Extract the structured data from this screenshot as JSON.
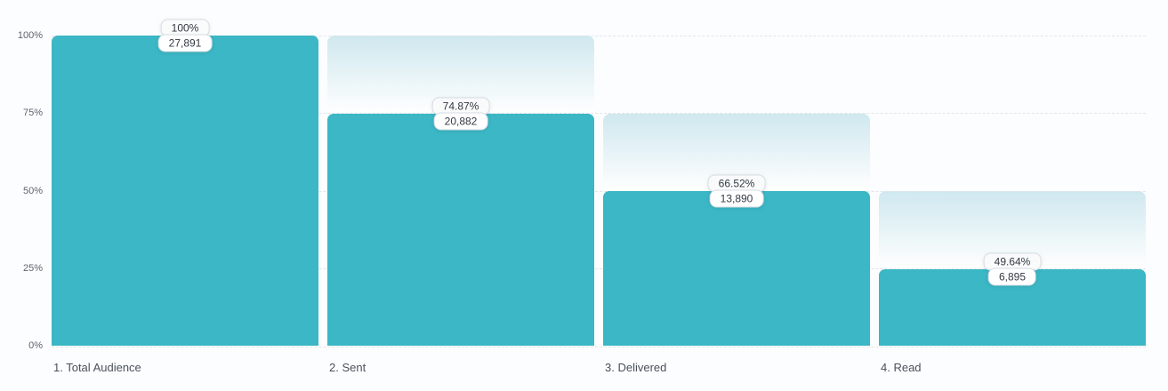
{
  "chart_data": {
    "type": "bar",
    "subtype": "funnel",
    "title": "",
    "xlabel": "",
    "ylabel": "",
    "ylim": [
      0,
      100
    ],
    "grid": "horizontal-dashed",
    "yticks": [
      "100%",
      "75%",
      "50%",
      "25%",
      "0%"
    ],
    "colors": {
      "bar": "#3bb7c5",
      "gradient_top": "#cfe8ef",
      "gradient_bottom": "#fdfefe",
      "gridline": "#e1e5e9",
      "badge_border": "#d6dce1",
      "badge_bg": "#ffffff"
    },
    "stages": [
      {
        "label": "1. Total Audience",
        "percent_label": "100%",
        "value_label": "27,891",
        "value": 27891,
        "percent_of_previous": 100,
        "percent_of_total": 100
      },
      {
        "label": "2. Sent",
        "percent_label": "74.87%",
        "value_label": "20,882",
        "value": 20882,
        "percent_of_previous": 74.87,
        "percent_of_total": 74.87
      },
      {
        "label": "3. Delivered",
        "percent_label": "66.52%",
        "value_label": "13,890",
        "value": 13890,
        "percent_of_previous": 66.52,
        "percent_of_total": 49.8
      },
      {
        "label": "4. Read",
        "percent_label": "49.64%",
        "value_label": "6,895",
        "value": 6895,
        "percent_of_previous": 49.64,
        "percent_of_total": 24.72
      }
    ]
  }
}
